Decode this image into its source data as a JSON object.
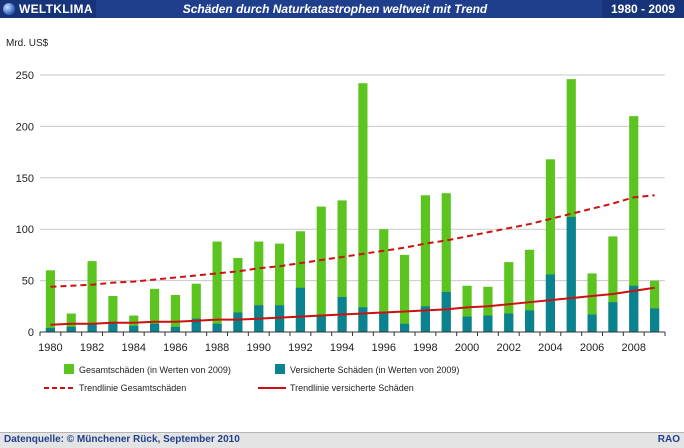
{
  "header": {
    "brand": "WELTKLIMA",
    "title": "Schäden durch Naturkatastrophen weltweit  mit Trend",
    "period": "1980 - 2009"
  },
  "footer": {
    "source": "Datenquelle: © Münchener Rück,  September 2010",
    "code": "RAO"
  },
  "chart_data": {
    "type": "bar",
    "ylabel": "Mrd. US$",
    "ylim": [
      0,
      250
    ],
    "yticks": [
      0,
      50,
      100,
      150,
      200,
      250
    ],
    "xticks": [
      1980,
      1982,
      1984,
      1986,
      1988,
      1990,
      1992,
      1994,
      1996,
      1998,
      2000,
      2002,
      2004,
      2006,
      2008
    ],
    "categories": [
      1980,
      1981,
      1982,
      1983,
      1984,
      1985,
      1986,
      1987,
      1988,
      1989,
      1990,
      1991,
      1992,
      1993,
      1994,
      1995,
      1996,
      1997,
      1998,
      1999,
      2000,
      2001,
      2002,
      2003,
      2004,
      2005,
      2006,
      2007,
      2008,
      2009
    ],
    "grid": "horizontal",
    "legend_position": "bottom",
    "series": [
      {
        "name": "Gesamtschäden (in Werten von 2009)",
        "color": "#5cc41e",
        "values": [
          60,
          18,
          69,
          35,
          16,
          42,
          36,
          47,
          88,
          72,
          88,
          86,
          98,
          122,
          128,
          242,
          100,
          75,
          133,
          135,
          45,
          44,
          68,
          80,
          168,
          246,
          57,
          93,
          210,
          50
        ]
      },
      {
        "name": "Versicherte Schäden (in Werten von 2009)",
        "color": "#0b8290",
        "values": [
          4,
          5,
          8,
          10,
          6,
          8,
          5,
          13,
          8,
          19,
          26,
          26,
          43,
          17,
          34,
          24,
          19,
          8,
          25,
          39,
          15,
          16,
          18,
          21,
          56,
          112,
          17,
          29,
          45,
          23
        ]
      }
    ],
    "trends": [
      {
        "name": "Trendlinie Gesamtschäden",
        "color": "#cc1111",
        "style": "dashed",
        "values": [
          44,
          45,
          46,
          48,
          49,
          51,
          53,
          55,
          57,
          59,
          62,
          64,
          67,
          70,
          73,
          76,
          79,
          82,
          86,
          89,
          93,
          97,
          101,
          105,
          110,
          115,
          120,
          125,
          131,
          133
        ]
      },
      {
        "name": "Trendlinie versicherte Schäden",
        "color": "#cc1111",
        "style": "solid",
        "values": [
          7,
          8,
          8,
          9,
          9,
          10,
          10,
          11,
          12,
          12,
          13,
          14,
          15,
          16,
          17,
          18,
          19,
          20,
          21,
          22,
          24,
          25,
          27,
          29,
          31,
          33,
          35,
          37,
          40,
          43
        ]
      }
    ]
  }
}
